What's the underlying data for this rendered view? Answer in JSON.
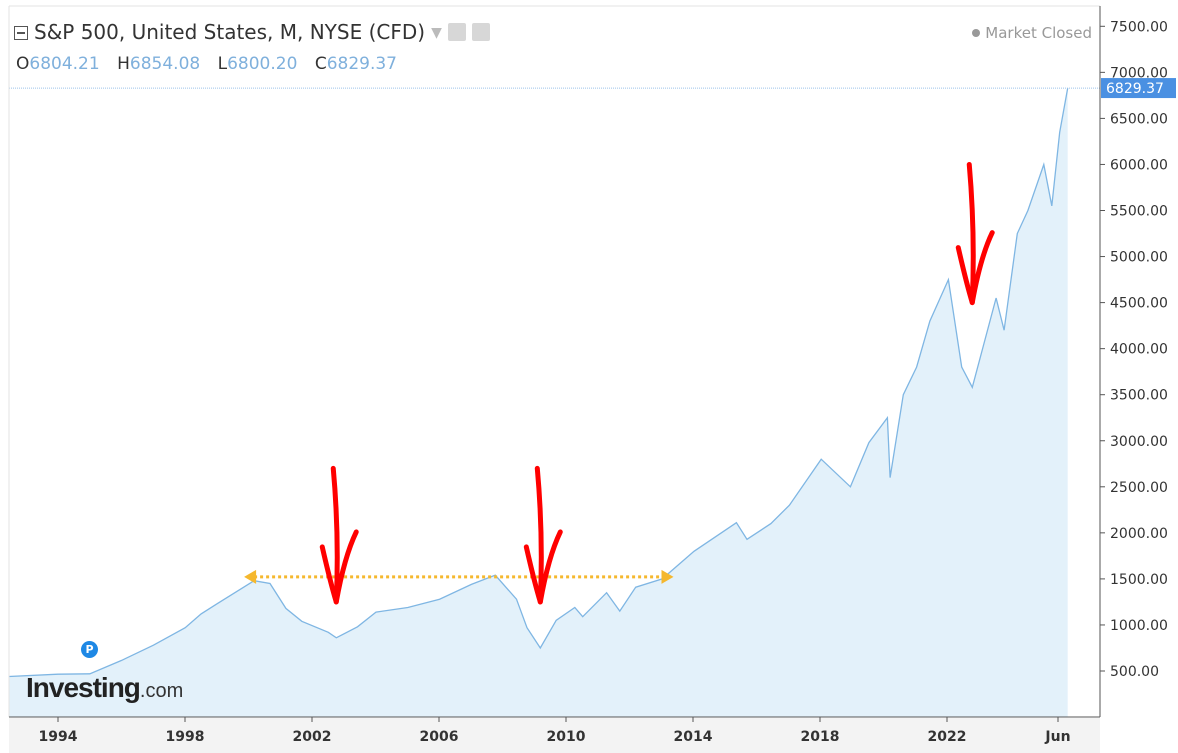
{
  "header": {
    "title": "S&P 500, United States, M, NYSE (CFD)",
    "market_status": "Market Closed",
    "ohlc": [
      {
        "key": "O",
        "value": "6804.21"
      },
      {
        "key": "H",
        "value": "6854.08"
      },
      {
        "key": "L",
        "value": "6800.20"
      },
      {
        "key": "C",
        "value": "6829.37"
      }
    ]
  },
  "logo": {
    "main": "Investing",
    "suffix": ".com"
  },
  "badge": "P",
  "colors": {
    "line": "#7fb6e3",
    "fill": "#e3f1fa",
    "arrow": "#ff0000",
    "range": "#f5b82e",
    "price_tag": "#4a90e2"
  },
  "chart_data": {
    "type": "area",
    "title": "S&P 500, United States, M, NYSE (CFD)",
    "xlabel": "",
    "ylabel": "",
    "x_ticks": [
      "1994",
      "1998",
      "2002",
      "2006",
      "2010",
      "2014",
      "2018",
      "2022",
      "Jun"
    ],
    "y_ticks": [
      "500.00",
      "1000.00",
      "1500.00",
      "2000.00",
      "2500.00",
      "3000.00",
      "3500.00",
      "4000.00",
      "4500.00",
      "5000.00",
      "5500.00",
      "6000.00",
      "6500.00",
      "7000.00",
      "7500.00"
    ],
    "ylim": [
      0,
      7700
    ],
    "last_price": "6829.37",
    "grid": false,
    "series": [
      {
        "x": [
          "1993-01",
          "1994-01",
          "1995-01",
          "1996-01",
          "1997-01",
          "1998-01",
          "1998-07",
          "1999-01",
          "2000-03",
          "2000-09",
          "2001-03",
          "2001-09",
          "2002-07",
          "2002-10",
          "2003-06",
          "2004-01",
          "2005-01",
          "2006-01",
          "2007-01",
          "2007-10",
          "2008-06",
          "2008-10",
          "2009-03",
          "2009-09",
          "2010-04",
          "2010-07",
          "2011-04",
          "2011-09",
          "2012-03",
          "2013-01",
          "2014-01",
          "2015-05",
          "2015-09",
          "2016-06",
          "2017-01",
          "2018-01",
          "2018-12",
          "2019-07",
          "2020-02",
          "2020-03",
          "2020-08",
          "2021-01",
          "2021-06",
          "2022-01",
          "2022-06",
          "2022-10",
          "2023-07",
          "2023-10",
          "2024-03",
          "2024-07",
          "2025-01",
          "2025-04",
          "2025-07",
          "2025-10"
        ],
        "values": [
          440,
          465,
          470,
          615,
          780,
          970,
          1120,
          1230,
          1480,
          1450,
          1180,
          1040,
          920,
          860,
          980,
          1140,
          1190,
          1280,
          1440,
          1540,
          1280,
          970,
          750,
          1050,
          1190,
          1090,
          1350,
          1150,
          1410,
          1500,
          1800,
          2110,
          1930,
          2100,
          2300,
          2800,
          2500,
          2980,
          3250,
          2600,
          3500,
          3800,
          4300,
          4750,
          3800,
          3580,
          4550,
          4200,
          5250,
          5500,
          6000,
          5550,
          6350,
          6829
        ]
      }
    ]
  },
  "annotations": {
    "range_line": {
      "from": "2000-03",
      "to": "2013-03",
      "level": 1500
    },
    "arrows": [
      {
        "x": "2002-10",
        "y": 1250,
        "y_top": 2700
      },
      {
        "x": "2009-03",
        "y": 1250,
        "y_top": 2700
      },
      {
        "x": "2022-10",
        "y": 4500,
        "y_top": 6000
      }
    ]
  }
}
